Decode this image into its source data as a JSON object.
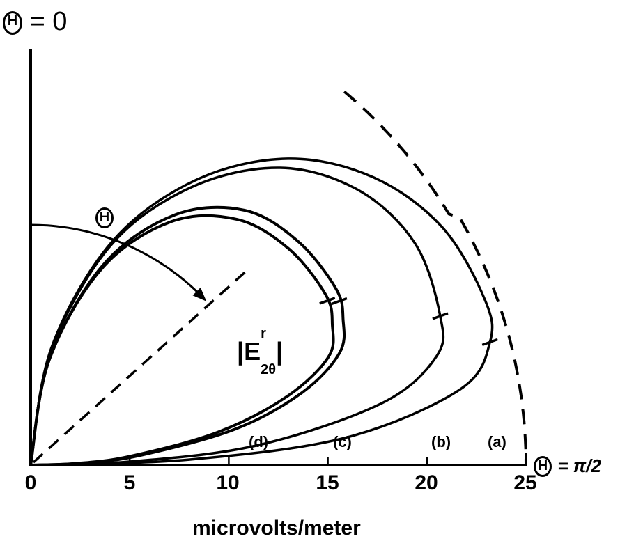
{
  "chart_data": {
    "type": "line",
    "subtype": "polar-half-plane",
    "title": "",
    "xlabel": "microvolts/meter",
    "ylabel": "",
    "x_ticks": [
      0,
      5,
      10,
      15,
      20,
      25
    ],
    "xlim": [
      0,
      25
    ],
    "axis_annotations": {
      "vertical_axis": "Θ = 0",
      "horizontal_axis": "Θ = π/2",
      "angle_marker": "Θ",
      "quantity": "|E^r_2Θ|"
    },
    "grid": false,
    "legend": "inline curve labels (a), (b), (c), (d)",
    "reference_circle": {
      "style": "dashed",
      "radius": 25
    },
    "angle_indicator_line": {
      "style": "dashed",
      "angle_deg_from_vertical": 48,
      "length": 14.7
    },
    "series": [
      {
        "name": "(a)",
        "label": "(a)",
        "polar_theta_deg": [
          0,
          10,
          20,
          30,
          40,
          50,
          60,
          70,
          75,
          80,
          85,
          88,
          90
        ],
        "r": [
          0,
          6.0,
          12.0,
          16.6,
          20.2,
          22.6,
          24.0,
          24.4,
          24.0,
          22.0,
          16.0,
          8.0,
          0
        ],
        "tick_at_theta_deg": 75
      },
      {
        "name": "(b)",
        "label": "(b)",
        "polar_theta_deg": [
          0,
          10,
          20,
          30,
          40,
          50,
          60,
          70,
          75,
          80,
          85,
          88,
          90
        ],
        "r": [
          0,
          5.8,
          11.8,
          16.2,
          19.6,
          21.6,
          22.4,
          22.0,
          21.2,
          18.0,
          11.5,
          5.0,
          0
        ],
        "tick_at_theta_deg": 70
      },
      {
        "name": "(c)",
        "label": "(c)",
        "polar_theta_deg": [
          0,
          10,
          20,
          30,
          40,
          50,
          60,
          65,
          70,
          75,
          80,
          85,
          88,
          90
        ],
        "r": [
          0,
          5.4,
          10.8,
          14.6,
          16.8,
          17.6,
          17.8,
          17.4,
          16.6,
          14.2,
          10.5,
          5.5,
          2.5,
          0
        ],
        "tick_at_theta_deg": 62
      },
      {
        "name": "(d)",
        "label": "(d)",
        "polar_theta_deg": [
          0,
          10,
          20,
          30,
          40,
          50,
          60,
          65,
          70,
          75,
          80,
          85,
          88,
          90
        ],
        "r": [
          0,
          5.4,
          10.6,
          14.2,
          16.2,
          17.0,
          17.2,
          16.8,
          16.0,
          13.4,
          9.6,
          5.0,
          2.2,
          0
        ],
        "tick_at_theta_deg": 61
      }
    ]
  },
  "labels": {
    "top_axis": {
      "symbol": "Θ",
      "eq": "= 0"
    },
    "right_axis": {
      "symbol": "Θ",
      "eq": "= π/2"
    },
    "angle_marker": "Θ",
    "quantity_main": "|E",
    "quantity_sup": "r",
    "quantity_sub": "2θ",
    "quantity_end": "|",
    "xlabel": "microvolts/meter",
    "ticks": [
      "0",
      "5",
      "10",
      "15",
      "20",
      "25"
    ],
    "curves": [
      "(a)",
      "(b)",
      "(c)",
      "(d)"
    ]
  }
}
